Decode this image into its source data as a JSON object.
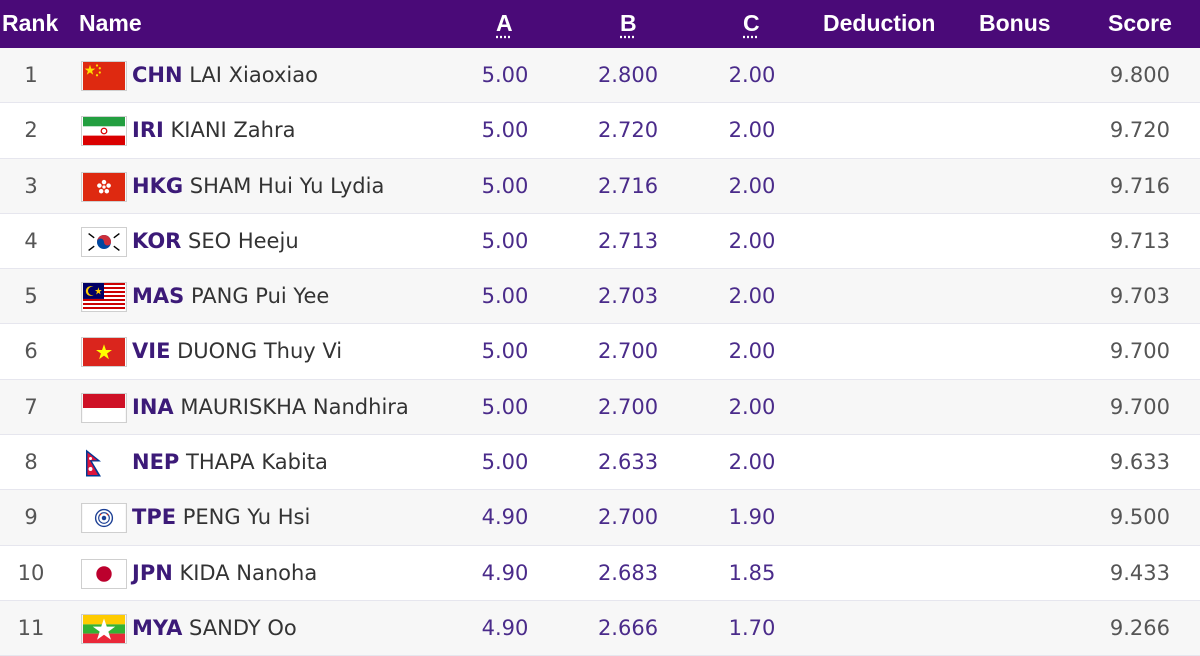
{
  "header": {
    "rank": "Rank",
    "name": "Name",
    "a": "A",
    "b": "B",
    "c": "C",
    "deduction": "Deduction",
    "bonus": "Bonus",
    "score": "Score"
  },
  "colors": {
    "header_bg": "#4a0a78",
    "noc_text": "#3c1a78",
    "value_text": "#4a2b8a"
  },
  "rows": [
    {
      "rank": "1",
      "noc": "CHN",
      "name": "LAI Xiaoxiao",
      "a": "5.00",
      "b": "2.800",
      "c": "2.00",
      "deduction": "",
      "bonus": "",
      "score": "9.800",
      "flag": "china-flag-icon"
    },
    {
      "rank": "2",
      "noc": "IRI",
      "name": "KIANI Zahra",
      "a": "5.00",
      "b": "2.720",
      "c": "2.00",
      "deduction": "",
      "bonus": "",
      "score": "9.720",
      "flag": "iran-flag-icon"
    },
    {
      "rank": "3",
      "noc": "HKG",
      "name": "SHAM Hui Yu Lydia",
      "a": "5.00",
      "b": "2.716",
      "c": "2.00",
      "deduction": "",
      "bonus": "",
      "score": "9.716",
      "flag": "hong-kong-flag-icon"
    },
    {
      "rank": "4",
      "noc": "KOR",
      "name": "SEO Heeju",
      "a": "5.00",
      "b": "2.713",
      "c": "2.00",
      "deduction": "",
      "bonus": "",
      "score": "9.713",
      "flag": "korea-flag-icon"
    },
    {
      "rank": "5",
      "noc": "MAS",
      "name": "PANG Pui Yee",
      "a": "5.00",
      "b": "2.703",
      "c": "2.00",
      "deduction": "",
      "bonus": "",
      "score": "9.703",
      "flag": "malaysia-flag-icon"
    },
    {
      "rank": "6",
      "noc": "VIE",
      "name": "DUONG Thuy Vi",
      "a": "5.00",
      "b": "2.700",
      "c": "2.00",
      "deduction": "",
      "bonus": "",
      "score": "9.700",
      "flag": "vietnam-flag-icon"
    },
    {
      "rank": "7",
      "noc": "INA",
      "name": "MAURISKHA Nandhira",
      "a": "5.00",
      "b": "2.700",
      "c": "2.00",
      "deduction": "",
      "bonus": "",
      "score": "9.700",
      "flag": "indonesia-flag-icon"
    },
    {
      "rank": "8",
      "noc": "NEP",
      "name": "THAPA Kabita",
      "a": "5.00",
      "b": "2.633",
      "c": "2.00",
      "deduction": "",
      "bonus": "",
      "score": "9.633",
      "flag": "nepal-flag-icon"
    },
    {
      "rank": "9",
      "noc": "TPE",
      "name": "PENG Yu Hsi",
      "a": "4.90",
      "b": "2.700",
      "c": "1.90",
      "deduction": "",
      "bonus": "",
      "score": "9.500",
      "flag": "chinese-taipei-flag-icon"
    },
    {
      "rank": "10",
      "noc": "JPN",
      "name": "KIDA Nanoha",
      "a": "4.90",
      "b": "2.683",
      "c": "1.85",
      "deduction": "",
      "bonus": "",
      "score": "9.433",
      "flag": "japan-flag-icon"
    },
    {
      "rank": "11",
      "noc": "MYA",
      "name": "SANDY Oo",
      "a": "4.90",
      "b": "2.666",
      "c": "1.70",
      "deduction": "",
      "bonus": "",
      "score": "9.266",
      "flag": "myanmar-flag-icon"
    }
  ]
}
